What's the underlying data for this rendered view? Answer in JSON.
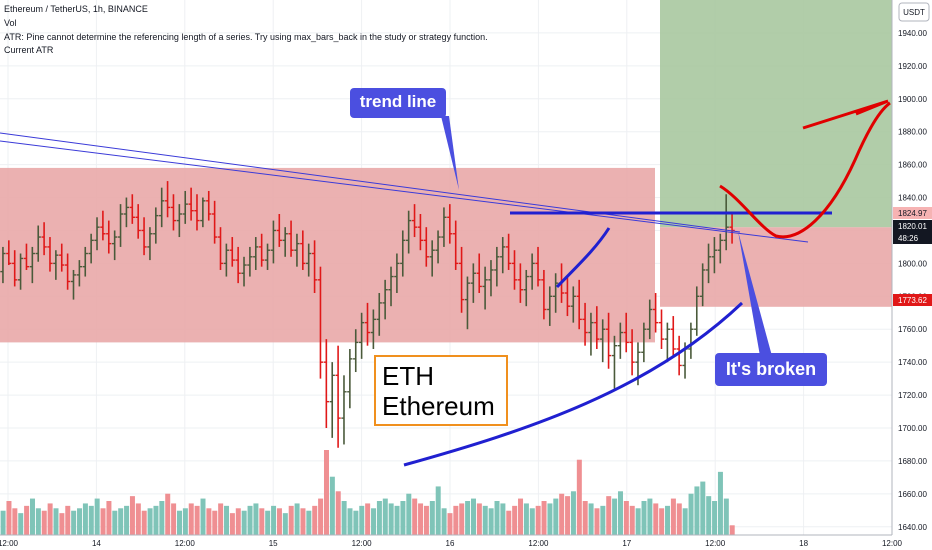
{
  "header": {
    "symbol_line": "Ethereum / TetherUS, 1h, BINANCE",
    "vol_label": "Vol",
    "atr_error": "ATR: Pine cannot determine the referencing length of a series. Try using max_bars_back in the study or strategy function.",
    "atr_label": "Current ATR"
  },
  "annotations": {
    "trend_line_label": "trend line",
    "broken_label": "It's broken",
    "eth_line1": "ETH",
    "eth_line2": "Ethereum"
  },
  "colors": {
    "up": "#4a5a3a",
    "down": "#e01818",
    "vol_up": "#7fc4b8",
    "vol_down": "#ef8f92",
    "zone": "#e9a8a8",
    "target_zone": "#a8c8a0",
    "callout": "#4b4fe0",
    "drawing_blue": "#2020d0",
    "drawing_red": "#e00000",
    "eth_border": "#f0901e"
  },
  "chart_data": {
    "type": "candlestick",
    "symbol": "Ethereum / TetherUS",
    "interval": "1h",
    "exchange": "BINANCE",
    "currency_label": "USDT",
    "ylim": [
      1635,
      1960
    ],
    "y_ticks": [
      1640,
      1660,
      1680,
      1700,
      1720,
      1740,
      1760,
      1780,
      1800,
      1820,
      1840,
      1860,
      1880,
      1900,
      1920,
      1940
    ],
    "x_ticks": [
      "12:00",
      "14",
      "12:00",
      "15",
      "12:00",
      "16",
      "12:00",
      "17",
      "12:00",
      "18",
      "12:00"
    ],
    "price_labels": [
      "1824.97",
      "1820.01",
      "48:26",
      "1773.62"
    ],
    "ohlc": [
      [
        1795,
        1810,
        1788,
        1806
      ],
      [
        1806,
        1814,
        1799,
        1800
      ],
      [
        1800,
        1808,
        1786,
        1790
      ],
      [
        1790,
        1806,
        1784,
        1803
      ],
      [
        1803,
        1812,
        1796,
        1798
      ],
      [
        1798,
        1810,
        1788,
        1806
      ],
      [
        1806,
        1823,
        1801,
        1816
      ],
      [
        1816,
        1825,
        1805,
        1810
      ],
      [
        1810,
        1816,
        1795,
        1800
      ],
      [
        1800,
        1808,
        1790,
        1805
      ],
      [
        1805,
        1812,
        1795,
        1799
      ],
      [
        1799,
        1806,
        1784,
        1789
      ],
      [
        1789,
        1796,
        1778,
        1793
      ],
      [
        1793,
        1802,
        1786,
        1798
      ],
      [
        1798,
        1810,
        1792,
        1806
      ],
      [
        1806,
        1818,
        1800,
        1814
      ],
      [
        1814,
        1828,
        1808,
        1822
      ],
      [
        1822,
        1832,
        1814,
        1818
      ],
      [
        1818,
        1826,
        1806,
        1812
      ],
      [
        1812,
        1820,
        1802,
        1816
      ],
      [
        1816,
        1836,
        1810,
        1830
      ],
      [
        1830,
        1840,
        1822,
        1834
      ],
      [
        1834,
        1842,
        1824,
        1828
      ],
      [
        1828,
        1836,
        1815,
        1820
      ],
      [
        1820,
        1828,
        1805,
        1810
      ],
      [
        1810,
        1822,
        1802,
        1818
      ],
      [
        1818,
        1834,
        1812,
        1829
      ],
      [
        1829,
        1846,
        1822,
        1838
      ],
      [
        1838,
        1850,
        1828,
        1834
      ],
      [
        1834,
        1842,
        1820,
        1826
      ],
      [
        1826,
        1836,
        1816,
        1830
      ],
      [
        1830,
        1844,
        1824,
        1836
      ],
      [
        1836,
        1846,
        1826,
        1832
      ],
      [
        1832,
        1842,
        1820,
        1826
      ],
      [
        1826,
        1840,
        1822,
        1838
      ],
      [
        1838,
        1844,
        1826,
        1830
      ],
      [
        1830,
        1838,
        1812,
        1816
      ],
      [
        1816,
        1822,
        1796,
        1800
      ],
      [
        1800,
        1812,
        1792,
        1808
      ],
      [
        1808,
        1816,
        1798,
        1802
      ],
      [
        1802,
        1810,
        1788,
        1794
      ],
      [
        1794,
        1804,
        1786,
        1799
      ],
      [
        1799,
        1810,
        1792,
        1804
      ],
      [
        1804,
        1816,
        1796,
        1810
      ],
      [
        1810,
        1818,
        1798,
        1802
      ],
      [
        1802,
        1812,
        1796,
        1808
      ],
      [
        1808,
        1826,
        1800,
        1820
      ],
      [
        1820,
        1830,
        1810,
        1814
      ],
      [
        1814,
        1822,
        1804,
        1818
      ],
      [
        1818,
        1826,
        1804,
        1808
      ],
      [
        1808,
        1818,
        1798,
        1812
      ],
      [
        1812,
        1820,
        1796,
        1800
      ],
      [
        1800,
        1812,
        1792,
        1806
      ],
      [
        1806,
        1814,
        1782,
        1790
      ],
      [
        1790,
        1798,
        1730,
        1740
      ],
      [
        1740,
        1754,
        1700,
        1716
      ],
      [
        1716,
        1740,
        1694,
        1732
      ],
      [
        1732,
        1750,
        1688,
        1706
      ],
      [
        1706,
        1732,
        1690,
        1722
      ],
      [
        1722,
        1748,
        1712,
        1742
      ],
      [
        1742,
        1760,
        1734,
        1752
      ],
      [
        1752,
        1770,
        1742,
        1764
      ],
      [
        1764,
        1776,
        1750,
        1758
      ],
      [
        1758,
        1772,
        1748,
        1766
      ],
      [
        1766,
        1782,
        1756,
        1776
      ],
      [
        1776,
        1790,
        1766,
        1784
      ],
      [
        1784,
        1798,
        1774,
        1792
      ],
      [
        1792,
        1806,
        1782,
        1800
      ],
      [
        1800,
        1820,
        1792,
        1814
      ],
      [
        1814,
        1832,
        1806,
        1826
      ],
      [
        1826,
        1836,
        1816,
        1822
      ],
      [
        1822,
        1830,
        1808,
        1814
      ],
      [
        1814,
        1822,
        1798,
        1804
      ],
      [
        1804,
        1814,
        1792,
        1808
      ],
      [
        1808,
        1820,
        1800,
        1816
      ],
      [
        1816,
        1834,
        1810,
        1828
      ],
      [
        1828,
        1836,
        1812,
        1818
      ],
      [
        1818,
        1826,
        1796,
        1800
      ],
      [
        1800,
        1810,
        1770,
        1778
      ],
      [
        1778,
        1792,
        1760,
        1788
      ],
      [
        1788,
        1800,
        1776,
        1794
      ],
      [
        1794,
        1806,
        1782,
        1786
      ],
      [
        1786,
        1798,
        1772,
        1790
      ],
      [
        1790,
        1802,
        1780,
        1796
      ],
      [
        1796,
        1810,
        1786,
        1804
      ],
      [
        1804,
        1816,
        1794,
        1810
      ],
      [
        1810,
        1818,
        1796,
        1800
      ],
      [
        1800,
        1808,
        1784,
        1790
      ],
      [
        1790,
        1800,
        1776,
        1784
      ],
      [
        1784,
        1796,
        1774,
        1792
      ],
      [
        1792,
        1806,
        1784,
        1800
      ],
      [
        1800,
        1810,
        1786,
        1790
      ],
      [
        1790,
        1796,
        1766,
        1772
      ],
      [
        1772,
        1786,
        1762,
        1780
      ],
      [
        1780,
        1794,
        1770,
        1788
      ],
      [
        1788,
        1800,
        1776,
        1782
      ],
      [
        1782,
        1792,
        1768,
        1774
      ],
      [
        1774,
        1786,
        1764,
        1780
      ],
      [
        1780,
        1790,
        1760,
        1766
      ],
      [
        1766,
        1776,
        1750,
        1758
      ],
      [
        1758,
        1770,
        1744,
        1764
      ],
      [
        1764,
        1774,
        1748,
        1754
      ],
      [
        1754,
        1766,
        1740,
        1760
      ],
      [
        1760,
        1770,
        1736,
        1744
      ],
      [
        1744,
        1756,
        1724,
        1750
      ],
      [
        1750,
        1764,
        1742,
        1758
      ],
      [
        1758,
        1770,
        1746,
        1752
      ],
      [
        1752,
        1760,
        1732,
        1740
      ],
      [
        1740,
        1752,
        1726,
        1746
      ],
      [
        1746,
        1764,
        1740,
        1760
      ],
      [
        1760,
        1778,
        1754,
        1772
      ],
      [
        1772,
        1782,
        1758,
        1764
      ],
      [
        1764,
        1772,
        1748,
        1754
      ],
      [
        1754,
        1764,
        1740,
        1760
      ],
      [
        1760,
        1768,
        1744,
        1748
      ],
      [
        1748,
        1756,
        1732,
        1738
      ],
      [
        1738,
        1752,
        1730,
        1748
      ],
      [
        1748,
        1764,
        1742,
        1760
      ],
      [
        1760,
        1786,
        1756,
        1780
      ],
      [
        1780,
        1800,
        1774,
        1796
      ],
      [
        1796,
        1812,
        1788,
        1804
      ],
      [
        1804,
        1816,
        1794,
        1808
      ],
      [
        1808,
        1818,
        1800,
        1814
      ],
      [
        1814,
        1842,
        1808,
        1822
      ],
      [
        1822,
        1830,
        1812,
        1820
      ]
    ],
    "volume": [
      20,
      28,
      22,
      18,
      24,
      30,
      22,
      20,
      26,
      22,
      18,
      24,
      20,
      22,
      26,
      24,
      30,
      22,
      28,
      20,
      22,
      24,
      32,
      26,
      20,
      22,
      24,
      28,
      34,
      26,
      20,
      22,
      26,
      24,
      30,
      22,
      20,
      26,
      24,
      18,
      22,
      20,
      24,
      26,
      22,
      20,
      24,
      22,
      18,
      24,
      26,
      22,
      20,
      24,
      30,
      70,
      48,
      36,
      28,
      22,
      20,
      24,
      26,
      22,
      28,
      30,
      26,
      24,
      28,
      34,
      30,
      26,
      24,
      28,
      40,
      22,
      18,
      24,
      26,
      28,
      30,
      26,
      24,
      22,
      28,
      26,
      20,
      24,
      30,
      26,
      22,
      24,
      28,
      26,
      30,
      34,
      32,
      36,
      62,
      28,
      26,
      22,
      24,
      32,
      30,
      36,
      28,
      24,
      22,
      28,
      30,
      26,
      22,
      24,
      30,
      26,
      22,
      34,
      40,
      44,
      32,
      28,
      52,
      30,
      8
    ],
    "zones": [
      {
        "from_price": 1752,
        "to_price": 1858,
        "color": "zone"
      },
      {
        "from_price": 1773.62,
        "to_price": 1822,
        "color": "zone"
      },
      {
        "from_price": 1822,
        "to_price": 1960,
        "color": "target_zone"
      }
    ]
  }
}
